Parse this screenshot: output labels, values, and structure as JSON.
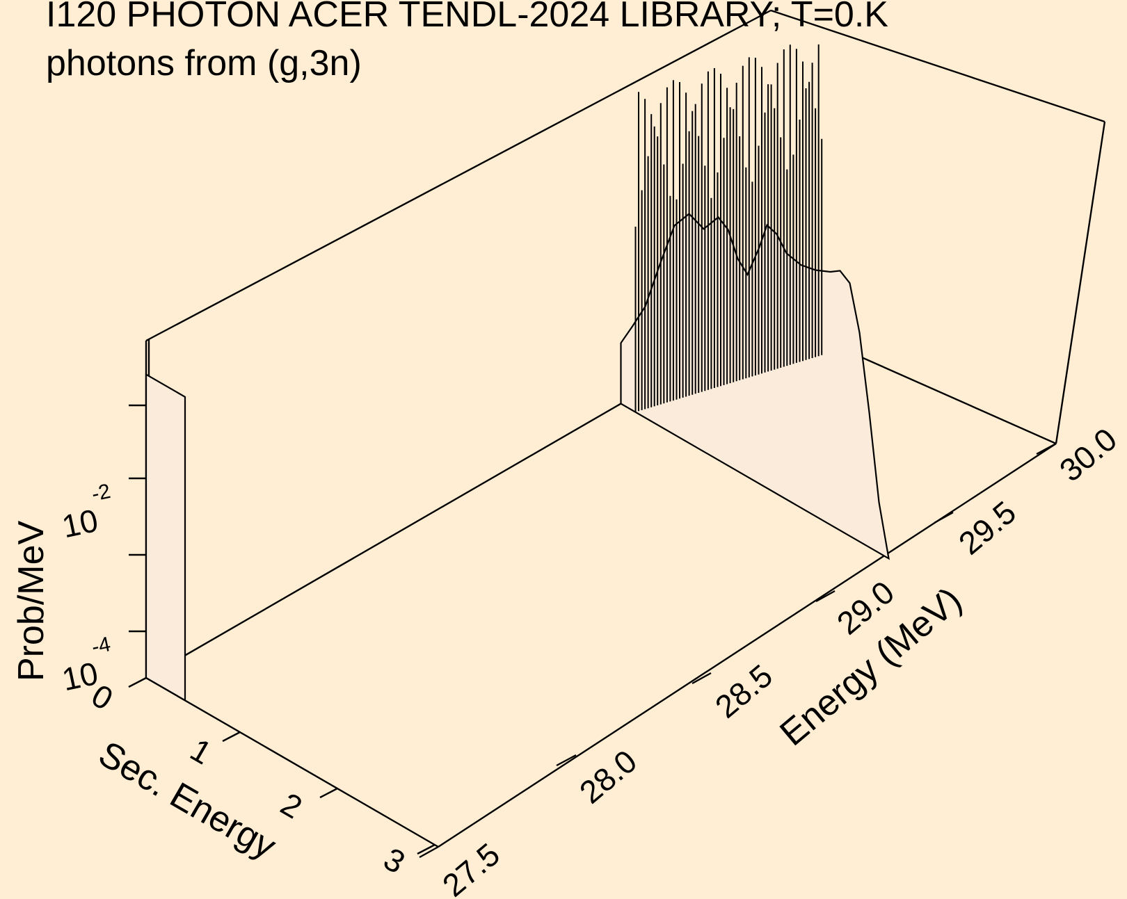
{
  "chart_data": {
    "type": "surface-3d",
    "title": "I120 PHOTON ACER TENDL-2024 LIBRARY; T=0.K",
    "subtitle": "photons from (g,3n)",
    "xlabel": "Energy (MeV)",
    "ylabel": "Sec. Energy",
    "zlabel": "Prob/MeV",
    "x_range": [
      27.5,
      30.0
    ],
    "y_range": [
      0,
      3
    ],
    "z_scale": "log",
    "x_ticks": [
      "27.5",
      "28.0",
      "28.5",
      "29.0",
      "29.5",
      "30.0"
    ],
    "y_ticks": [
      "0",
      "1",
      "2",
      "3"
    ],
    "z_ticks": [
      {
        "base": "10",
        "exp": "-4"
      },
      {
        "base": "10",
        "exp": "-2"
      }
    ],
    "series": [
      {
        "x_start": 27.5,
        "curve": [
          [
            0.0,
            0.1
          ],
          [
            0.0,
            0.9
          ],
          [
            0.4,
            0.9
          ],
          [
            0.4,
            0.1
          ]
        ]
      },
      {
        "x_start": 29.4,
        "curve": [
          [
            0.0,
            0.18
          ],
          [
            0.12,
            0.25
          ],
          [
            0.25,
            0.33
          ],
          [
            0.4,
            0.48
          ],
          [
            0.55,
            0.62
          ],
          [
            0.7,
            0.68
          ],
          [
            0.85,
            0.66
          ],
          [
            1.0,
            0.72
          ],
          [
            1.1,
            0.7
          ],
          [
            1.2,
            0.63
          ],
          [
            1.3,
            0.6
          ],
          [
            1.42,
            0.7
          ],
          [
            1.5,
            0.78
          ],
          [
            1.6,
            0.77
          ],
          [
            1.7,
            0.73
          ],
          [
            1.85,
            0.72
          ],
          [
            2.0,
            0.73
          ],
          [
            2.15,
            0.75
          ],
          [
            2.25,
            0.77
          ],
          [
            2.35,
            0.75
          ],
          [
            2.45,
            0.62
          ],
          [
            2.55,
            0.4
          ],
          [
            2.65,
            0.15
          ],
          [
            2.75,
            0.0
          ]
        ]
      }
    ],
    "dense_lines_x_range": [
      29.4,
      30.0
    ],
    "colors": {
      "background": "#FFEDD4",
      "surface": "#FAEBDA",
      "lines": "#000000"
    }
  }
}
